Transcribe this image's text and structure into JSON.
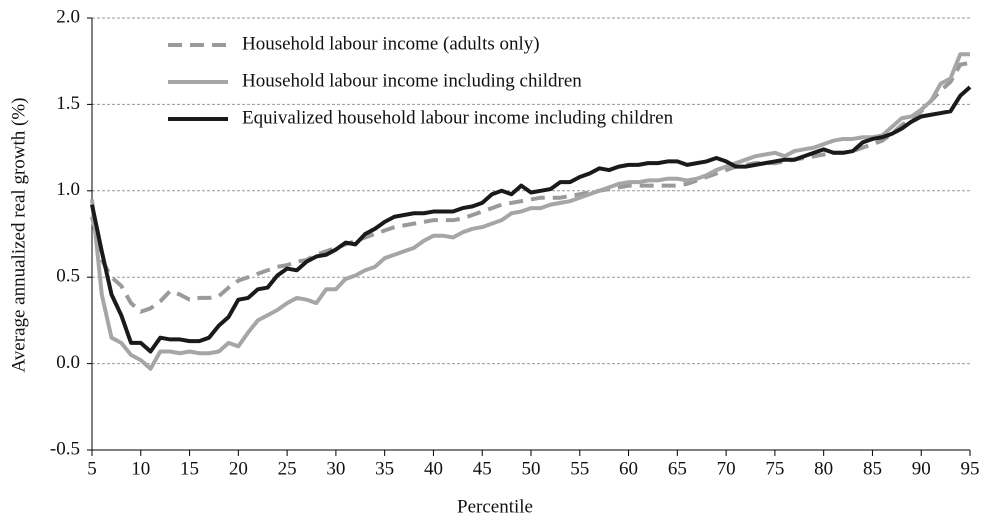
{
  "chart_data": {
    "type": "line",
    "xlabel": "Percentile",
    "ylabel": "Average annualized real growth (%)",
    "x": [
      5,
      6,
      7,
      8,
      9,
      10,
      11,
      12,
      13,
      14,
      15,
      16,
      17,
      18,
      19,
      20,
      21,
      22,
      23,
      24,
      25,
      26,
      27,
      28,
      29,
      30,
      31,
      32,
      33,
      34,
      35,
      36,
      37,
      38,
      39,
      40,
      41,
      42,
      43,
      44,
      45,
      46,
      47,
      48,
      49,
      50,
      51,
      52,
      53,
      54,
      55,
      56,
      57,
      58,
      59,
      60,
      61,
      62,
      63,
      64,
      65,
      66,
      67,
      68,
      69,
      70,
      71,
      72,
      73,
      74,
      75,
      76,
      77,
      78,
      79,
      80,
      81,
      82,
      83,
      84,
      85,
      86,
      87,
      88,
      89,
      90,
      91,
      92,
      93,
      94,
      95
    ],
    "series": [
      {
        "name": "Household labour income (adults only)",
        "color": "#9a9a9a",
        "dashed": true,
        "values": [
          0.85,
          0.6,
          0.5,
          0.45,
          0.35,
          0.3,
          0.32,
          0.36,
          0.42,
          0.4,
          0.37,
          0.38,
          0.38,
          0.39,
          0.44,
          0.48,
          0.5,
          0.52,
          0.54,
          0.56,
          0.57,
          0.59,
          0.6,
          0.63,
          0.65,
          0.67,
          0.69,
          0.71,
          0.73,
          0.75,
          0.77,
          0.79,
          0.8,
          0.81,
          0.82,
          0.83,
          0.83,
          0.83,
          0.84,
          0.86,
          0.88,
          0.9,
          0.92,
          0.93,
          0.94,
          0.95,
          0.96,
          0.96,
          0.96,
          0.97,
          0.98,
          0.99,
          1.0,
          1.01,
          1.02,
          1.03,
          1.03,
          1.03,
          1.03,
          1.03,
          1.03,
          1.04,
          1.06,
          1.08,
          1.1,
          1.12,
          1.14,
          1.15,
          1.16,
          1.16,
          1.16,
          1.17,
          1.18,
          1.19,
          1.2,
          1.21,
          1.22,
          1.22,
          1.23,
          1.25,
          1.27,
          1.29,
          1.33,
          1.38,
          1.42,
          1.46,
          1.52,
          1.58,
          1.63,
          1.73,
          1.74
        ]
      },
      {
        "name": "Household labour income including children",
        "color": "#a6a6a6",
        "dashed": false,
        "values": [
          0.95,
          0.4,
          0.15,
          0.12,
          0.05,
          0.02,
          -0.03,
          0.07,
          0.07,
          0.06,
          0.07,
          0.06,
          0.06,
          0.07,
          0.12,
          0.1,
          0.18,
          0.25,
          0.28,
          0.31,
          0.35,
          0.38,
          0.37,
          0.35,
          0.43,
          0.43,
          0.49,
          0.51,
          0.54,
          0.56,
          0.61,
          0.63,
          0.65,
          0.67,
          0.71,
          0.74,
          0.74,
          0.73,
          0.76,
          0.78,
          0.79,
          0.81,
          0.83,
          0.87,
          0.88,
          0.9,
          0.9,
          0.92,
          0.93,
          0.94,
          0.96,
          0.98,
          1.0,
          1.02,
          1.04,
          1.05,
          1.05,
          1.06,
          1.06,
          1.07,
          1.07,
          1.06,
          1.07,
          1.09,
          1.12,
          1.14,
          1.16,
          1.18,
          1.2,
          1.21,
          1.22,
          1.2,
          1.23,
          1.24,
          1.25,
          1.27,
          1.29,
          1.3,
          1.3,
          1.31,
          1.31,
          1.32,
          1.37,
          1.42,
          1.43,
          1.47,
          1.52,
          1.62,
          1.65,
          1.79,
          1.79
        ]
      },
      {
        "name": "Equivalized household labour income including children",
        "color": "#1a1a1a",
        "dashed": false,
        "values": [
          0.92,
          0.65,
          0.4,
          0.28,
          0.12,
          0.12,
          0.07,
          0.15,
          0.14,
          0.14,
          0.13,
          0.13,
          0.15,
          0.22,
          0.27,
          0.37,
          0.38,
          0.43,
          0.44,
          0.51,
          0.55,
          0.54,
          0.59,
          0.62,
          0.63,
          0.66,
          0.7,
          0.69,
          0.75,
          0.78,
          0.82,
          0.85,
          0.86,
          0.87,
          0.87,
          0.88,
          0.88,
          0.88,
          0.9,
          0.91,
          0.93,
          0.98,
          1.0,
          0.98,
          1.03,
          0.99,
          1.0,
          1.01,
          1.05,
          1.05,
          1.08,
          1.1,
          1.13,
          1.12,
          1.14,
          1.15,
          1.15,
          1.16,
          1.16,
          1.17,
          1.17,
          1.15,
          1.16,
          1.17,
          1.19,
          1.17,
          1.14,
          1.14,
          1.15,
          1.16,
          1.17,
          1.18,
          1.18,
          1.2,
          1.22,
          1.24,
          1.22,
          1.22,
          1.23,
          1.28,
          1.3,
          1.31,
          1.33,
          1.36,
          1.4,
          1.43,
          1.44,
          1.45,
          1.46,
          1.55,
          1.6
        ]
      }
    ],
    "xlim": [
      5,
      95
    ],
    "xticks": [
      5,
      10,
      15,
      20,
      25,
      30,
      35,
      40,
      45,
      50,
      55,
      60,
      65,
      70,
      75,
      80,
      85,
      90,
      95
    ],
    "ylim": [
      -0.5,
      2.0
    ],
    "yticks": [
      {
        "value": 2.0,
        "label": "2.0"
      },
      1.5,
      {
        "value": 1.0,
        "label": "1.0"
      },
      0.5,
      {
        "value": 0.0,
        "label": "0.0"
      },
      -0.5
    ],
    "grid": true,
    "legend": "upper left"
  }
}
